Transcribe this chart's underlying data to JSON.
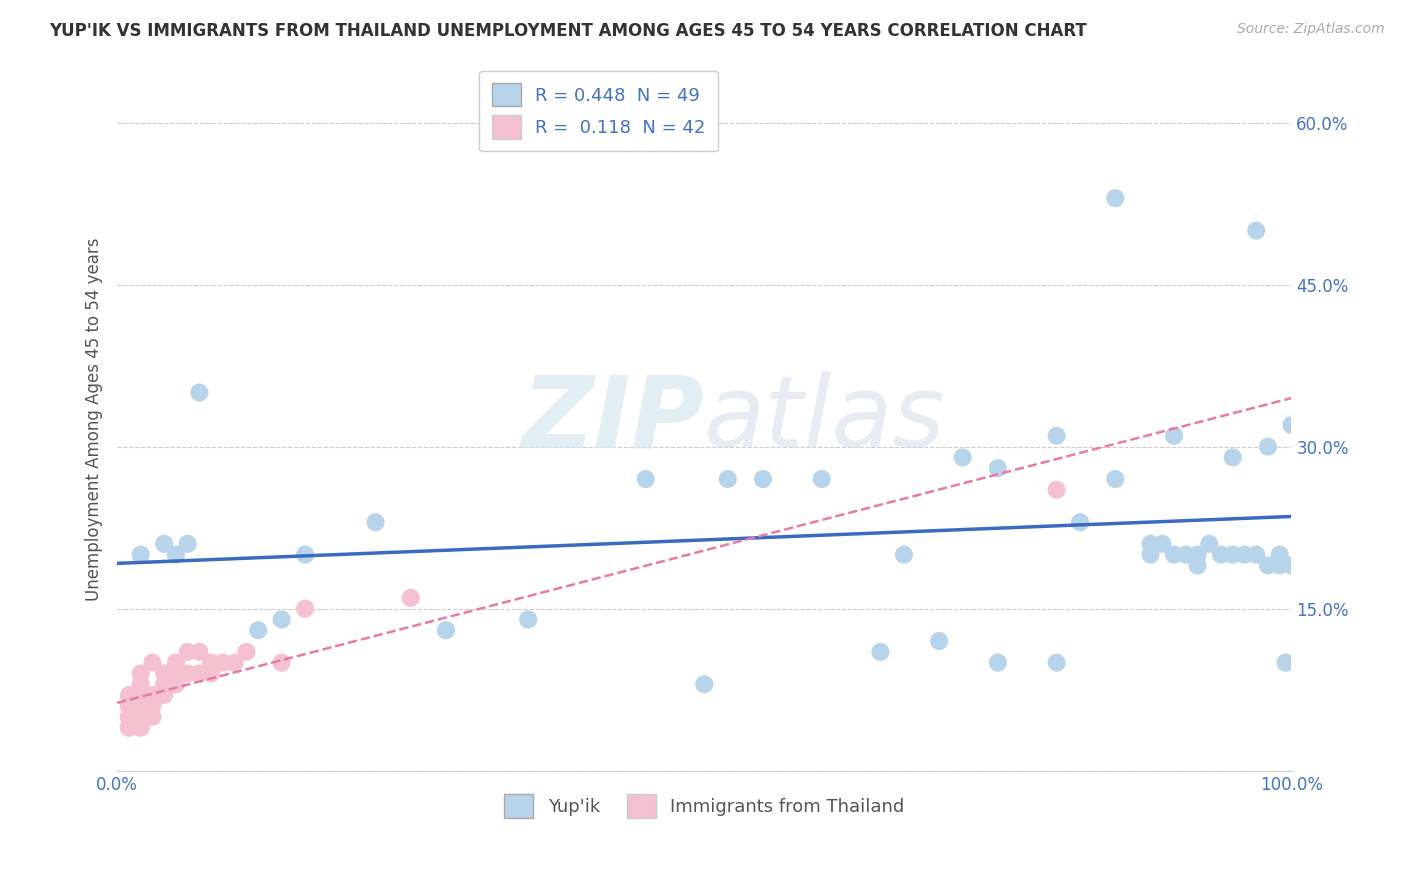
{
  "title": "YUP'IK VS IMMIGRANTS FROM THAILAND UNEMPLOYMENT AMONG AGES 45 TO 54 YEARS CORRELATION CHART",
  "source": "Source: ZipAtlas.com",
  "ylabel": "Unemployment Among Ages 45 to 54 years",
  "xlim": [
    0,
    1.0
  ],
  "ylim": [
    0,
    0.65
  ],
  "xticks": [
    0.0,
    1.0
  ],
  "xticklabels": [
    "0.0%",
    "100.0%"
  ],
  "yticks": [
    0.15,
    0.3,
    0.45,
    0.6
  ],
  "yticklabels": [
    "15.0%",
    "30.0%",
    "45.0%",
    "60.0%"
  ],
  "R_yupik": "0.448",
  "N_yupik": "49",
  "R_thailand": "0.118",
  "N_thailand": "42",
  "watermark_zip": "ZIP",
  "watermark_atlas": "atlas",
  "legend_labels": [
    "Yup'ik",
    "Immigrants from Thailand"
  ],
  "yupik_color": "#b8d4ea",
  "thailand_color": "#f5c0cf",
  "yupik_line_color": "#3a6bbf",
  "thailand_line_color": "#e87aaa",
  "background_color": "#ffffff",
  "grid_color": "#cccccc",
  "yupik_x": [
    0.02,
    0.04,
    0.05,
    0.06,
    0.07,
    0.12,
    0.14,
    0.16,
    0.22,
    0.28,
    0.35,
    0.45,
    0.5,
    0.52,
    0.55,
    0.6,
    0.65,
    0.67,
    0.7,
    0.72,
    0.75,
    0.8,
    0.82,
    0.85,
    0.88,
    0.89,
    0.9,
    0.91,
    0.92,
    0.93,
    0.94,
    0.95,
    0.96,
    0.97,
    0.98,
    0.99,
    0.995,
    1.0,
    0.75,
    0.8,
    0.85,
    0.88,
    0.9,
    0.92,
    0.95,
    0.97,
    0.98,
    0.99,
    1.0
  ],
  "yupik_y": [
    0.2,
    0.21,
    0.2,
    0.21,
    0.35,
    0.13,
    0.14,
    0.2,
    0.23,
    0.13,
    0.14,
    0.27,
    0.08,
    0.27,
    0.27,
    0.27,
    0.11,
    0.2,
    0.12,
    0.29,
    0.1,
    0.1,
    0.23,
    0.53,
    0.21,
    0.21,
    0.31,
    0.2,
    0.19,
    0.21,
    0.2,
    0.29,
    0.2,
    0.5,
    0.3,
    0.2,
    0.1,
    0.32,
    0.28,
    0.31,
    0.27,
    0.2,
    0.2,
    0.2,
    0.2,
    0.2,
    0.19,
    0.19,
    0.19
  ],
  "thailand_x": [
    0.01,
    0.01,
    0.01,
    0.01,
    0.01,
    0.01,
    0.01,
    0.01,
    0.01,
    0.01,
    0.02,
    0.02,
    0.02,
    0.02,
    0.02,
    0.02,
    0.02,
    0.02,
    0.02,
    0.03,
    0.03,
    0.03,
    0.03,
    0.04,
    0.04,
    0.04,
    0.05,
    0.05,
    0.05,
    0.06,
    0.06,
    0.07,
    0.07,
    0.08,
    0.08,
    0.09,
    0.1,
    0.11,
    0.14,
    0.16,
    0.25,
    0.8
  ],
  "thailand_y": [
    0.04,
    0.04,
    0.04,
    0.05,
    0.05,
    0.05,
    0.05,
    0.06,
    0.06,
    0.07,
    0.04,
    0.04,
    0.05,
    0.05,
    0.06,
    0.06,
    0.07,
    0.08,
    0.09,
    0.05,
    0.06,
    0.07,
    0.1,
    0.07,
    0.08,
    0.09,
    0.08,
    0.09,
    0.1,
    0.09,
    0.11,
    0.09,
    0.11,
    0.09,
    0.1,
    0.1,
    0.1,
    0.11,
    0.1,
    0.15,
    0.16,
    0.26
  ]
}
